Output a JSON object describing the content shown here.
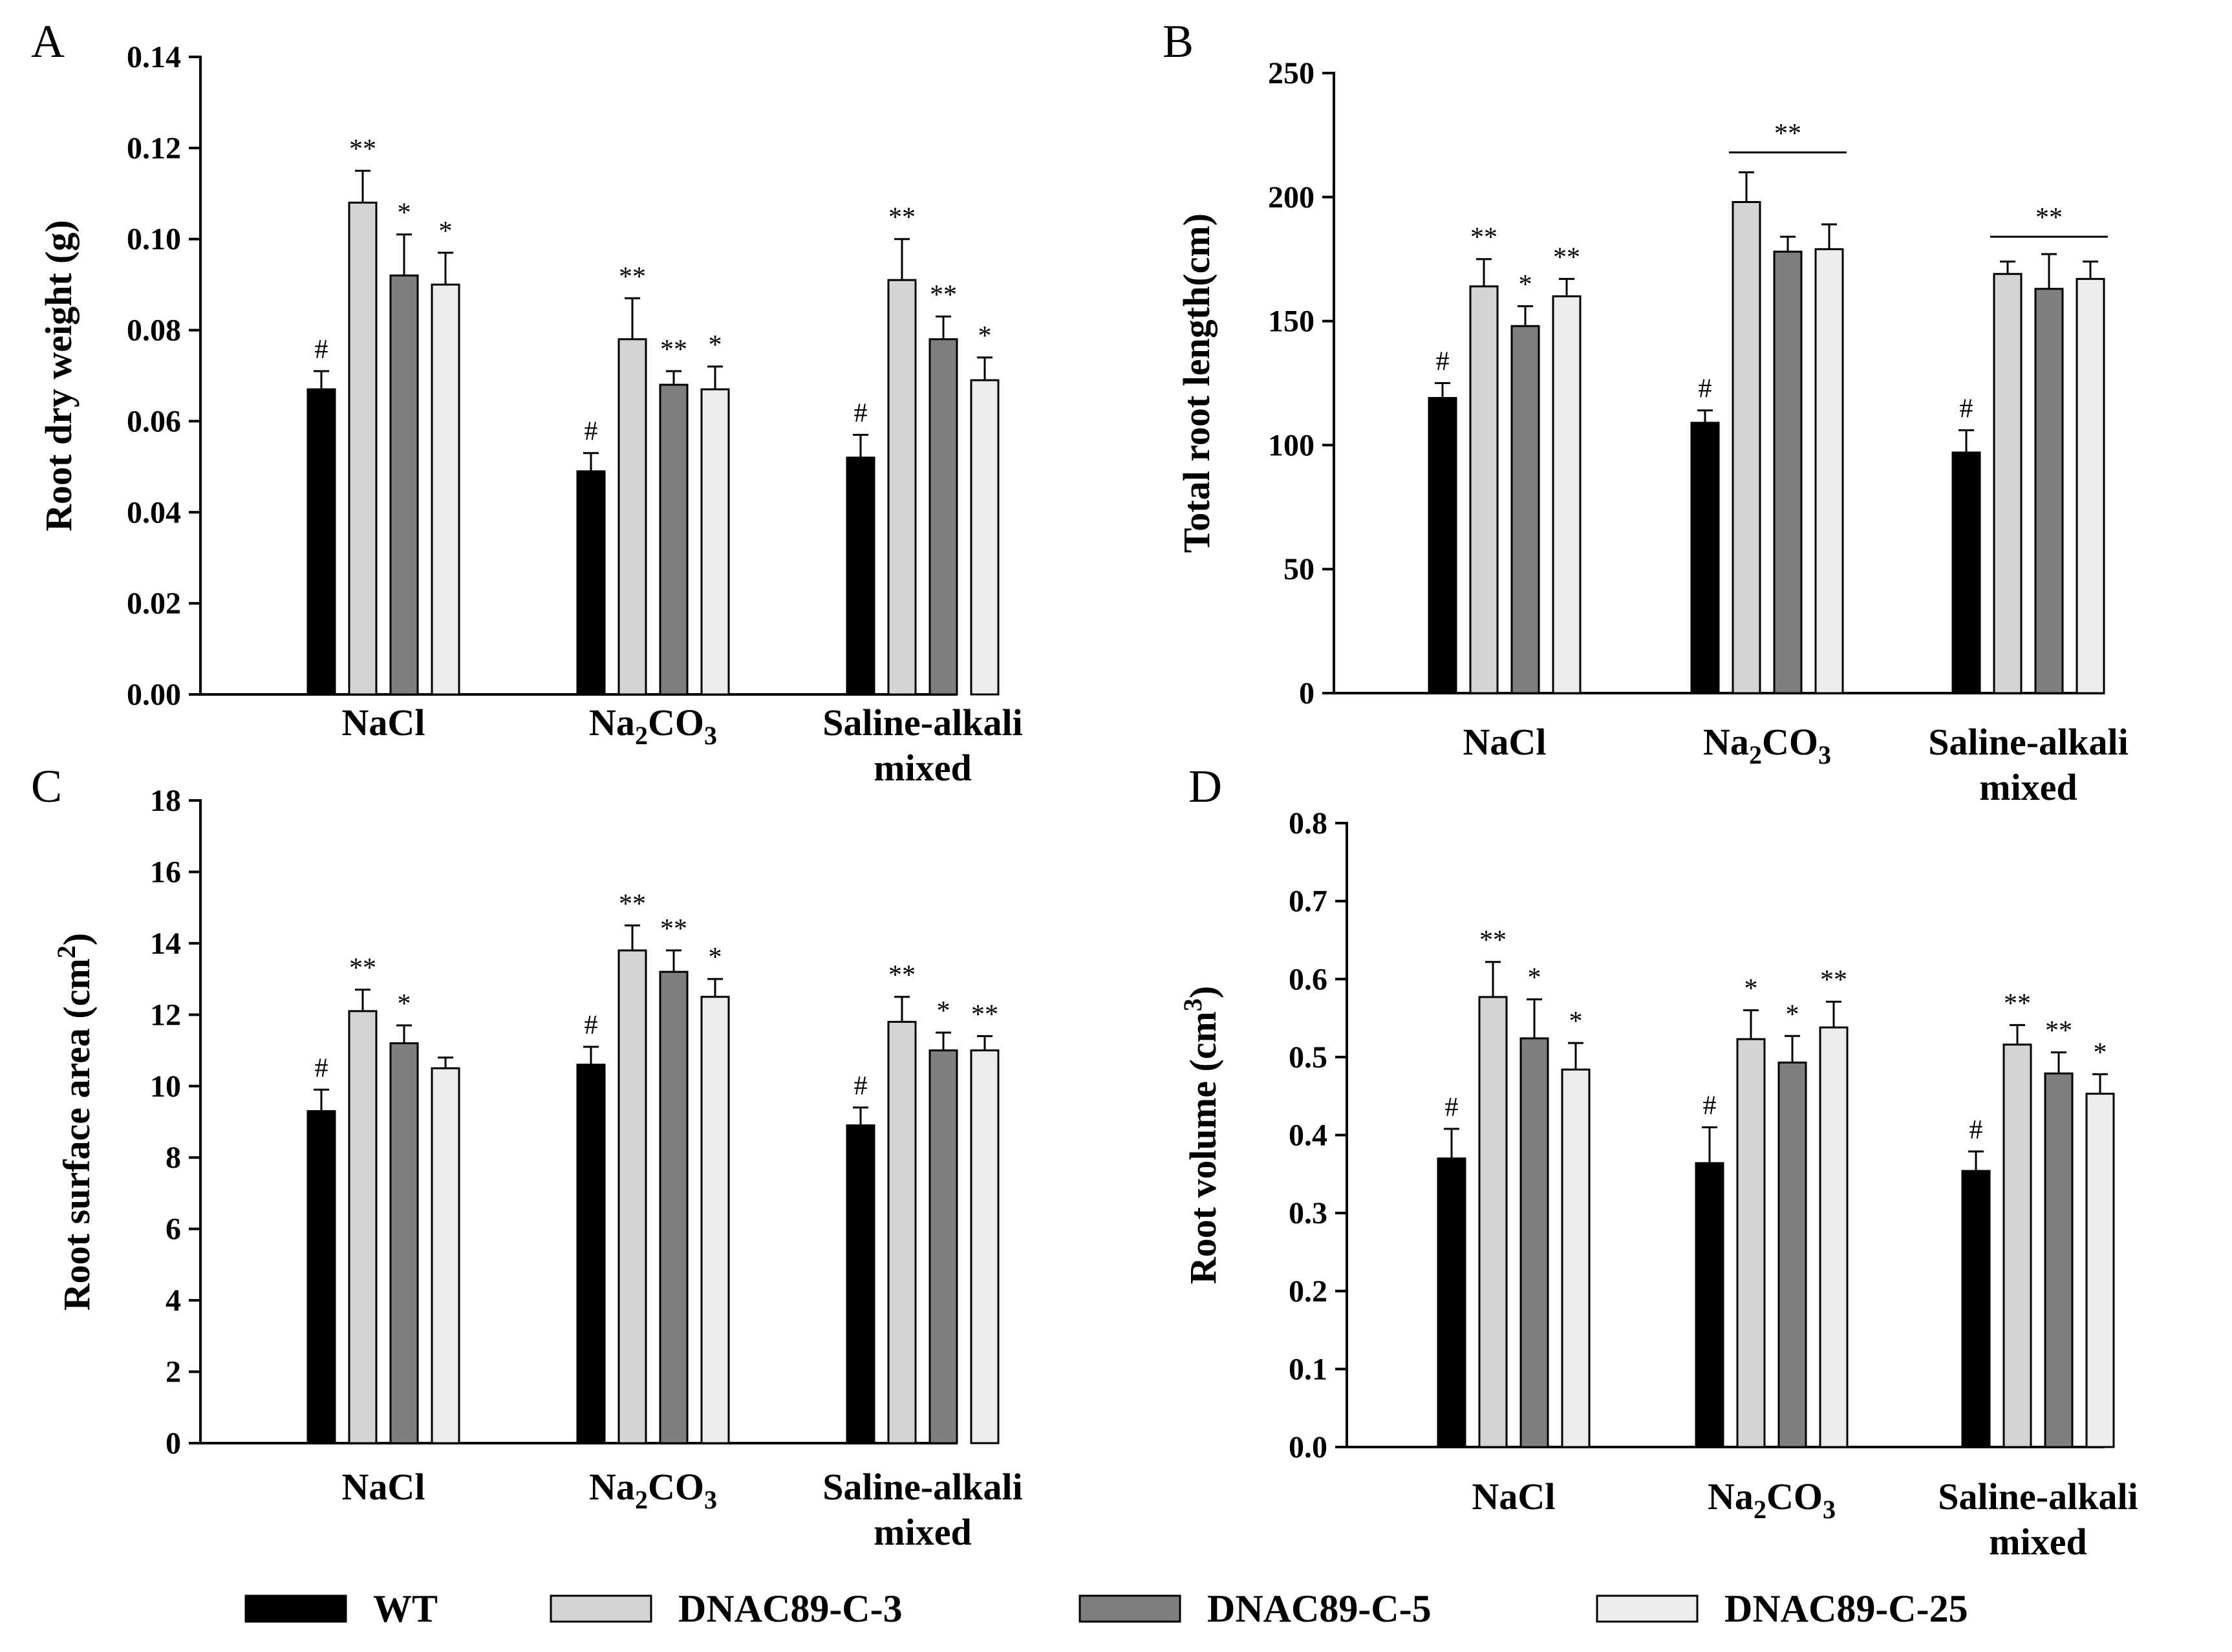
{
  "legend": [
    {
      "name": "WT",
      "color": "#000000"
    },
    {
      "name": "DNAC89-C-3",
      "color": "#d4d4d4"
    },
    {
      "name": "DNAC89-C-5",
      "color": "#7f7f7f"
    },
    {
      "name": "DNAC89-C-25",
      "color": "#ececec"
    }
  ],
  "chart_data": [
    {
      "panel": "A",
      "type": "bar",
      "ylabel": "Root dry weight (g)",
      "ylim": [
        0,
        0.14
      ],
      "yticks": [
        "0.00",
        "0.02",
        "0.04",
        "0.06",
        "0.08",
        "0.10",
        "0.12",
        "0.14"
      ],
      "categories": [
        {
          "line1": "NaCl",
          "sub": "",
          "line1b": "",
          "line2": ""
        },
        {
          "line1": "Na",
          "sub": "2",
          "line1b": "CO",
          "sub2": "3",
          "line2": ""
        },
        {
          "line1": "Saline-alkali",
          "sub": "",
          "line1b": "",
          "line2": "mixed"
        }
      ],
      "series": [
        {
          "name": "WT",
          "values": [
            0.067,
            0.049,
            0.052
          ],
          "errors": [
            0.004,
            0.004,
            0.005
          ],
          "sig": [
            "#",
            "#",
            "#"
          ]
        },
        {
          "name": "DNAC89-C-3",
          "values": [
            0.108,
            0.078,
            0.091
          ],
          "errors": [
            0.007,
            0.009,
            0.009
          ],
          "sig": [
            "**",
            "**",
            "**"
          ]
        },
        {
          "name": "DNAC89-C-5",
          "values": [
            0.092,
            0.068,
            0.078
          ],
          "errors": [
            0.009,
            0.003,
            0.005
          ],
          "sig": [
            "*",
            "**",
            "**"
          ]
        },
        {
          "name": "DNAC89-C-25",
          "values": [
            0.09,
            0.067,
            0.069
          ],
          "errors": [
            0.007,
            0.005,
            0.005
          ],
          "sig": [
            "*",
            "*",
            "*"
          ]
        }
      ],
      "group_sig": []
    },
    {
      "panel": "B",
      "type": "bar",
      "ylabel": "Total root length(cm)",
      "ylim": [
        0,
        250
      ],
      "yticks": [
        "0",
        "50",
        "100",
        "150",
        "200",
        "250"
      ],
      "categories": [
        {
          "line1": "NaCl",
          "sub": "",
          "line1b": "",
          "line2": ""
        },
        {
          "line1": "Na",
          "sub": "2",
          "line1b": "CO",
          "sub2": "3",
          "line2": ""
        },
        {
          "line1": "Saline-alkali",
          "sub": "",
          "line1b": "",
          "line2": "mixed"
        }
      ],
      "series": [
        {
          "name": "WT",
          "values": [
            119,
            109,
            97
          ],
          "errors": [
            6,
            5,
            9
          ],
          "sig": [
            "#",
            "#",
            "#"
          ]
        },
        {
          "name": "DNAC89-C-3",
          "values": [
            164,
            198,
            169
          ],
          "errors": [
            11,
            12,
            5
          ],
          "sig": [
            "**",
            "",
            ""
          ]
        },
        {
          "name": "DNAC89-C-5",
          "values": [
            148,
            178,
            163
          ],
          "errors": [
            8,
            6,
            14
          ],
          "sig": [
            "*",
            "",
            ""
          ]
        },
        {
          "name": "DNAC89-C-25",
          "values": [
            160,
            179,
            167
          ],
          "errors": [
            7,
            10,
            7
          ],
          "sig": [
            "**",
            "",
            ""
          ]
        }
      ],
      "group_sig": [
        {
          "category": 1,
          "label": "**",
          "value": 218
        },
        {
          "category": 2,
          "label": "**",
          "value": 184
        }
      ]
    },
    {
      "panel": "C",
      "type": "bar",
      "ylabel": "Root surface area (cm",
      "ylabel_sup": "2",
      "ylabel_end": ")",
      "ylim": [
        0,
        18
      ],
      "yticks": [
        "0",
        "2",
        "4",
        "6",
        "8",
        "10",
        "12",
        "14",
        "16",
        "18"
      ],
      "categories": [
        {
          "line1": "NaCl",
          "sub": "",
          "line1b": "",
          "line2": ""
        },
        {
          "line1": "Na",
          "sub": "2",
          "line1b": "CO",
          "sub2": "3",
          "line2": ""
        },
        {
          "line1": "Saline-alkali",
          "sub": "",
          "line1b": "",
          "line2": "mixed"
        }
      ],
      "series": [
        {
          "name": "WT",
          "values": [
            9.3,
            10.6,
            8.9
          ],
          "errors": [
            0.6,
            0.5,
            0.5
          ],
          "sig": [
            "#",
            "#",
            "#"
          ]
        },
        {
          "name": "DNAC89-C-3",
          "values": [
            12.1,
            13.8,
            11.8
          ],
          "errors": [
            0.6,
            0.7,
            0.7
          ],
          "sig": [
            "**",
            "**",
            "**"
          ]
        },
        {
          "name": "DNAC89-C-5",
          "values": [
            11.2,
            13.2,
            11.0
          ],
          "errors": [
            0.5,
            0.6,
            0.5
          ],
          "sig": [
            "*",
            "**",
            "*"
          ]
        },
        {
          "name": "DNAC89-C-25",
          "values": [
            10.5,
            12.5,
            11.0
          ],
          "errors": [
            0.3,
            0.5,
            0.4
          ],
          "sig": [
            "",
            "*",
            "**"
          ]
        }
      ],
      "group_sig": []
    },
    {
      "panel": "D",
      "type": "bar",
      "ylabel": "Root volume (cm",
      "ylabel_sup": "3",
      "ylabel_end": ")",
      "ylim": [
        0,
        0.8
      ],
      "yticks": [
        "0.0",
        "0.1",
        "0.2",
        "0.3",
        "0.4",
        "0.5",
        "0.6",
        "0.7",
        "0.8"
      ],
      "categories": [
        {
          "line1": "NaCl",
          "sub": "",
          "line1b": "",
          "line2": ""
        },
        {
          "line1": "Na",
          "sub": "2",
          "line1b": "CO",
          "sub2": "3",
          "line2": ""
        },
        {
          "line1": "Saline-alkali",
          "sub": "",
          "line1b": "",
          "line2": "mixed"
        }
      ],
      "series": [
        {
          "name": "WT",
          "values": [
            0.37,
            0.364,
            0.354
          ],
          "errors": [
            0.038,
            0.046,
            0.025
          ],
          "sig": [
            "#",
            "#",
            "#"
          ]
        },
        {
          "name": "DNAC89-C-3",
          "values": [
            0.577,
            0.523,
            0.516
          ],
          "errors": [
            0.045,
            0.037,
            0.025
          ],
          "sig": [
            "**",
            "*",
            "**"
          ]
        },
        {
          "name": "DNAC89-C-5",
          "values": [
            0.524,
            0.493,
            0.479
          ],
          "errors": [
            0.05,
            0.034,
            0.027
          ],
          "sig": [
            "*",
            "*",
            "**"
          ]
        },
        {
          "name": "DNAC89-C-25",
          "values": [
            0.484,
            0.538,
            0.453
          ],
          "errors": [
            0.034,
            0.033,
            0.025
          ],
          "sig": [
            "*",
            "**",
            "*"
          ]
        }
      ],
      "group_sig": []
    }
  ]
}
